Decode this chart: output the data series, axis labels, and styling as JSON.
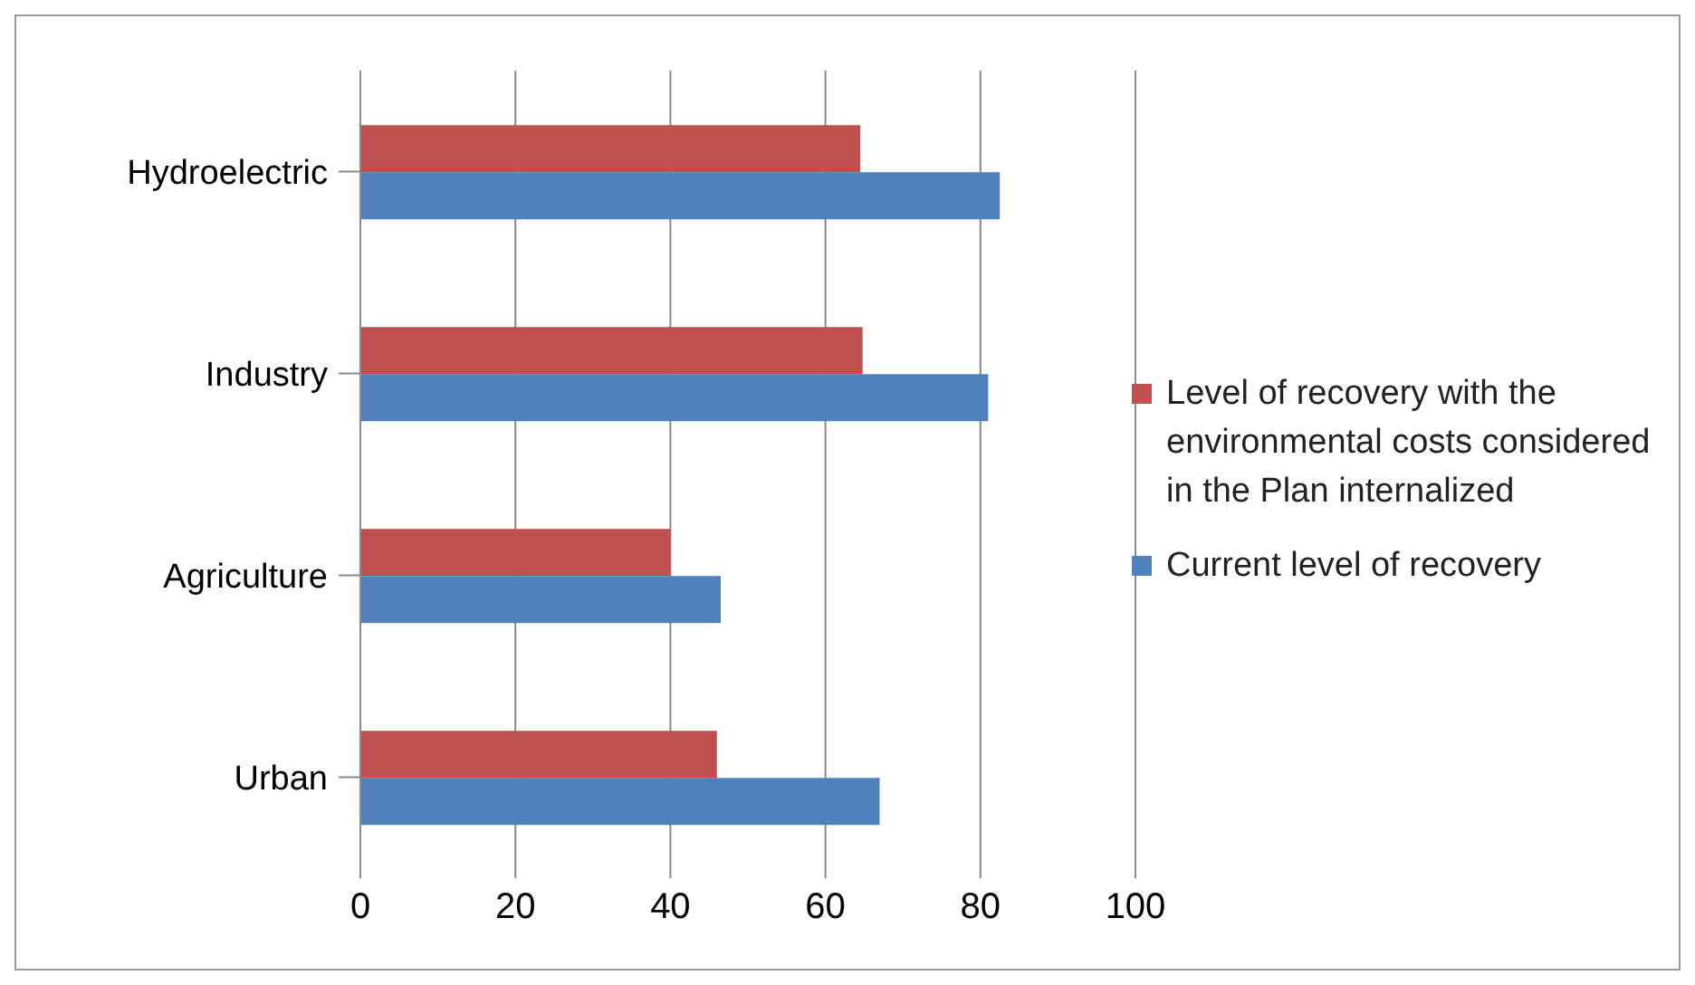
{
  "chart_data": {
    "type": "bar",
    "orientation": "horizontal",
    "categories": [
      "Hydroelectric",
      "Industry",
      "Agriculture",
      "Urban"
    ],
    "series": [
      {
        "name": "Level of recovery with the environmental costs considered in the Plan internalized",
        "color": "#c0504d",
        "values": [
          64.5,
          64.8,
          40,
          46
        ]
      },
      {
        "name": "Current level of recovery",
        "color": "#4f81bd",
        "values": [
          82.5,
          81,
          46.5,
          67
        ]
      }
    ],
    "xlim": [
      0,
      100
    ],
    "xticks": [
      0,
      20,
      40,
      60,
      80,
      100
    ],
    "grid": "x",
    "legend": "right"
  }
}
